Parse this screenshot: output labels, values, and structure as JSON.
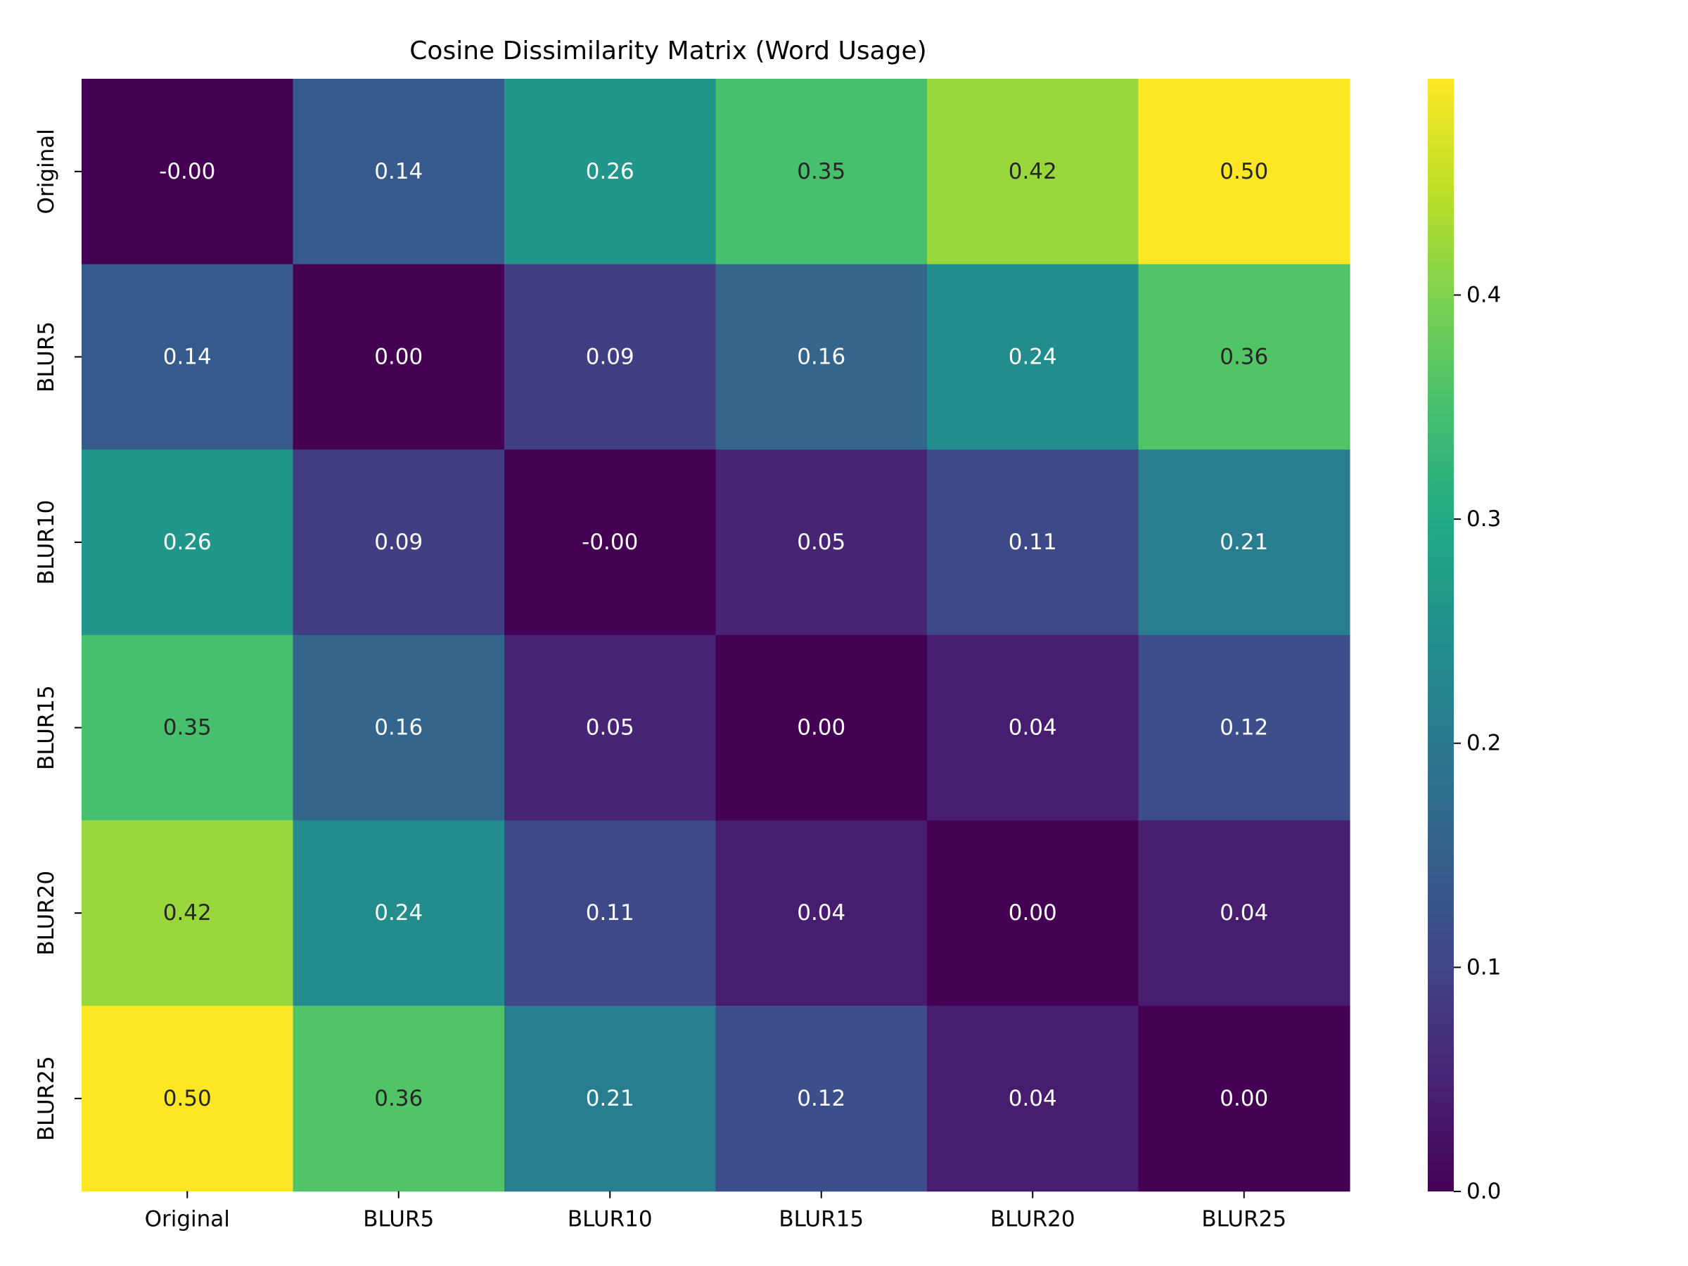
{
  "chart_data": {
    "type": "heatmap",
    "title": "Cosine Dissimilarity Matrix (Word Usage)",
    "xlabel": "",
    "ylabel": "",
    "row_labels": [
      "Original",
      "BLUR5",
      "BLUR10",
      "BLUR15",
      "BLUR20",
      "BLUR25"
    ],
    "col_labels": [
      "Original",
      "BLUR5",
      "BLUR10",
      "BLUR15",
      "BLUR20",
      "BLUR25"
    ],
    "values": [
      [
        -0.0,
        0.14,
        0.26,
        0.35,
        0.42,
        0.5
      ],
      [
        0.14,
        0.0,
        0.09,
        0.16,
        0.24,
        0.36
      ],
      [
        0.26,
        0.09,
        -0.0,
        0.05,
        0.11,
        0.21
      ],
      [
        0.35,
        0.16,
        0.05,
        0.0,
        0.04,
        0.12
      ],
      [
        0.42,
        0.24,
        0.11,
        0.04,
        0.0,
        0.04
      ],
      [
        0.5,
        0.36,
        0.21,
        0.12,
        0.04,
        0.0
      ]
    ],
    "cell_labels": [
      [
        "-0.00",
        "0.14",
        "0.26",
        "0.35",
        "0.42",
        "0.50"
      ],
      [
        "0.14",
        "0.00",
        "0.09",
        "0.16",
        "0.24",
        "0.36"
      ],
      [
        "0.26",
        "0.09",
        "-0.00",
        "0.05",
        "0.11",
        "0.21"
      ],
      [
        "0.35",
        "0.16",
        "0.05",
        "0.00",
        "0.04",
        "0.12"
      ],
      [
        "0.42",
        "0.24",
        "0.11",
        "0.04",
        "0.00",
        "0.04"
      ],
      [
        "0.50",
        "0.36",
        "0.21",
        "0.12",
        "0.04",
        "0.00"
      ]
    ],
    "colormap": "viridis",
    "color_range": [
      0.0,
      0.4965
    ],
    "colorbar": {
      "ticks": [
        0.0,
        0.1,
        0.2,
        0.3,
        0.4
      ],
      "tick_labels": [
        "0.0",
        "0.1",
        "0.2",
        "0.3",
        "0.4"
      ]
    },
    "grid": false,
    "legend": "colorbar-right"
  }
}
